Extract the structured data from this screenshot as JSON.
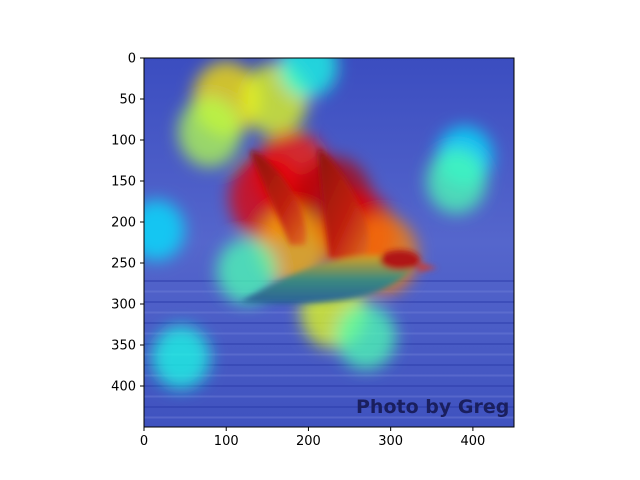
{
  "chart_data": {
    "type": "heatmap",
    "title": "",
    "xlabel": "",
    "ylabel": "",
    "xlim": [
      0,
      450
    ],
    "ylim": [
      450,
      0
    ],
    "x_ticks": [
      0,
      100,
      200,
      300,
      400
    ],
    "y_ticks": [
      0,
      50,
      100,
      150,
      200,
      250,
      300,
      350,
      400
    ],
    "colormap": "jet",
    "grid": false,
    "legend": "none",
    "overlay_text": "Photo by Greg L",
    "hotspots": [
      {
        "x": 100,
        "y": 50,
        "intensity": 0.65
      },
      {
        "x": 160,
        "y": 50,
        "intensity": 0.6
      },
      {
        "x": 80,
        "y": 90,
        "intensity": 0.55
      },
      {
        "x": 180,
        "y": 140,
        "intensity": 0.85
      },
      {
        "x": 150,
        "y": 170,
        "intensity": 0.9
      },
      {
        "x": 230,
        "y": 175,
        "intensity": 0.95
      },
      {
        "x": 260,
        "y": 215,
        "intensity": 0.9
      },
      {
        "x": 290,
        "y": 240,
        "intensity": 0.75
      },
      {
        "x": 180,
        "y": 230,
        "intensity": 0.7
      },
      {
        "x": 230,
        "y": 310,
        "intensity": 0.6
      },
      {
        "x": 270,
        "y": 340,
        "intensity": 0.45
      },
      {
        "x": 125,
        "y": 260,
        "intensity": 0.45
      },
      {
        "x": 390,
        "y": 120,
        "intensity": 0.35
      },
      {
        "x": 380,
        "y": 150,
        "intensity": 0.45
      },
      {
        "x": 200,
        "y": 10,
        "intensity": 0.4
      },
      {
        "x": 15,
        "y": 210,
        "intensity": 0.35
      },
      {
        "x": 45,
        "y": 365,
        "intensity": 0.4
      }
    ]
  },
  "colors": {
    "background_dark": "#1f2a8c",
    "background_mid": "#3c4fc4",
    "bird_dark_red": "#7a0d0d",
    "bird_belly": "#2f7a77"
  }
}
